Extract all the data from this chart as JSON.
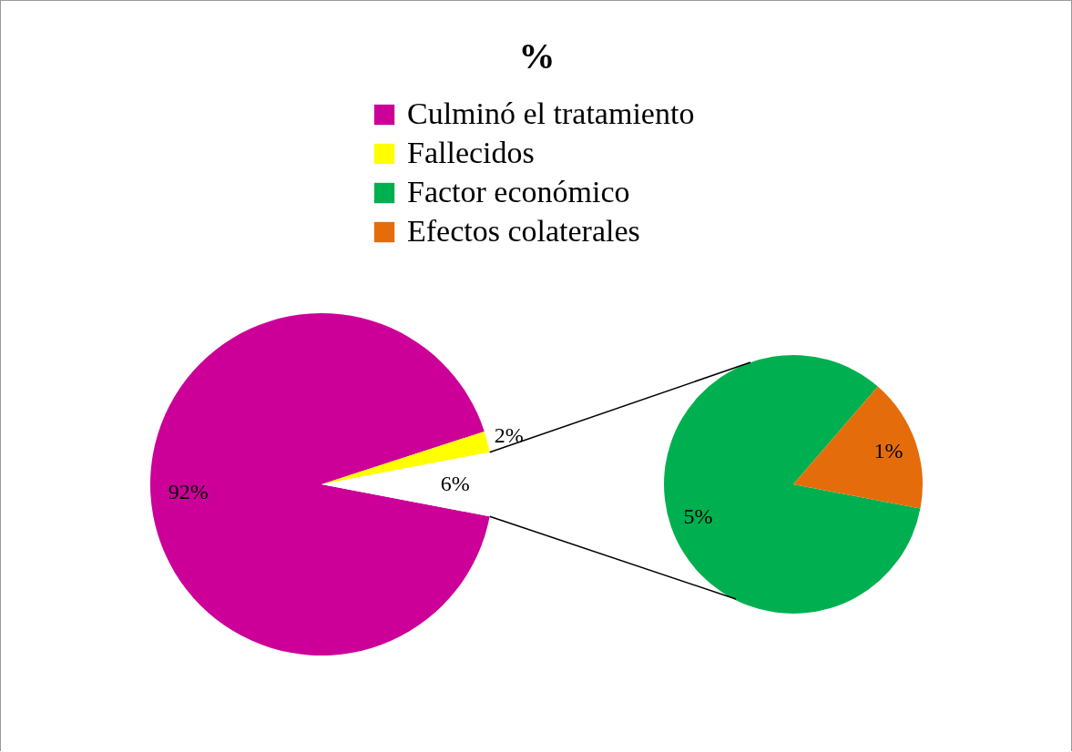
{
  "chart_data": [
    {
      "type": "pie",
      "title": "%",
      "categories": [
        "Culminó el tratamiento",
        "Fallecidos",
        null
      ],
      "values": [
        92,
        2,
        6
      ],
      "colors": [
        "#cc0099",
        "#ffff00",
        "#ffffff"
      ],
      "value_labels": [
        "92%",
        "2%",
        "6%"
      ],
      "legend": "top"
    },
    {
      "type": "pie",
      "categories": [
        "Factor económico",
        "Efectos colaterales"
      ],
      "values": [
        5,
        1
      ],
      "colors": [
        "#00b050",
        "#e46c0a"
      ],
      "value_labels": [
        "5%",
        "1%"
      ],
      "legend": "top"
    }
  ]
}
